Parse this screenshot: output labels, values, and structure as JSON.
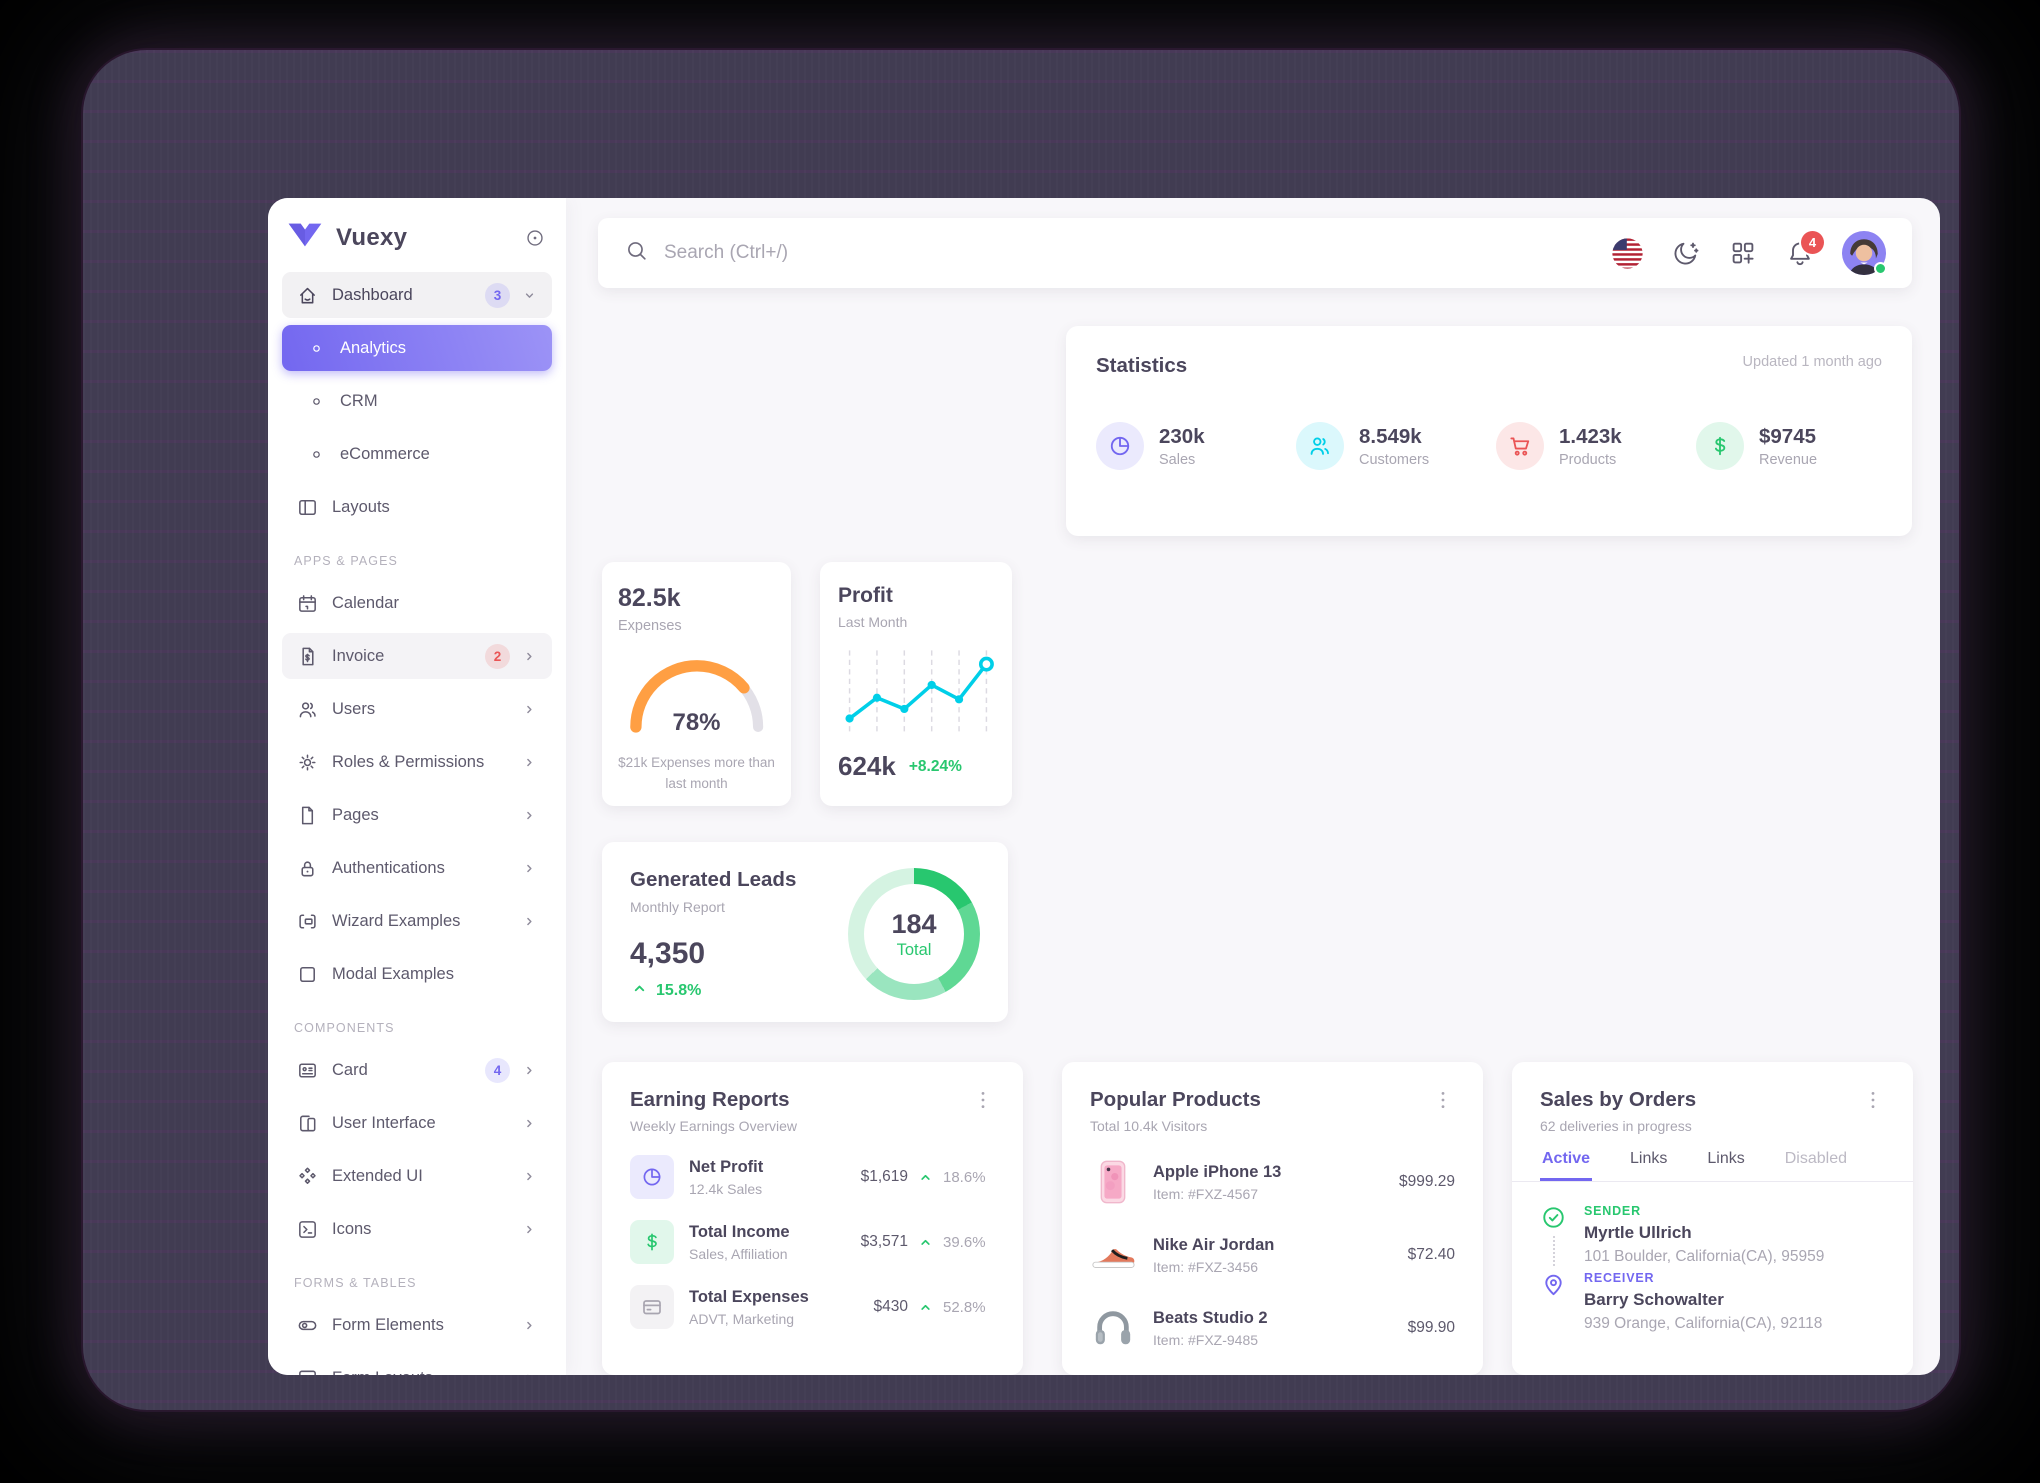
{
  "colors": {
    "primary": "#7367f0",
    "success": "#28c76f",
    "danger": "#ea5455",
    "warning": "#ff9f43",
    "info": "#00cfe8"
  },
  "sidebar": {
    "logo_text": "Vuexy",
    "items": [
      {
        "type": "item",
        "icon": "home",
        "label": "Dashboard",
        "badge": "3",
        "badge_color": "purple",
        "chevron": "down",
        "state": "open"
      },
      {
        "type": "item",
        "icon": "circle",
        "label": "Analytics",
        "state": "active"
      },
      {
        "type": "item",
        "icon": "circle",
        "label": "CRM"
      },
      {
        "type": "item",
        "icon": "circle",
        "label": "eCommerce"
      },
      {
        "type": "item",
        "icon": "layout",
        "label": "Layouts"
      },
      {
        "type": "section",
        "label": "APPS & PAGES"
      },
      {
        "type": "item",
        "icon": "calendar",
        "label": "Calendar"
      },
      {
        "type": "item",
        "icon": "invoice",
        "label": "Invoice",
        "badge": "2",
        "badge_color": "red",
        "chevron": "right",
        "state": "hover"
      },
      {
        "type": "item",
        "icon": "users",
        "label": "Users",
        "chevron": "right"
      },
      {
        "type": "item",
        "icon": "gear",
        "label": "Roles & Permissions",
        "chevron": "right"
      },
      {
        "type": "item",
        "icon": "file",
        "label": "Pages",
        "chevron": "right"
      },
      {
        "type": "item",
        "icon": "lock",
        "label": "Authentications",
        "chevron": "right"
      },
      {
        "type": "item",
        "icon": "wizard",
        "label": "Wizard Examples",
        "chevron": "right"
      },
      {
        "type": "item",
        "icon": "square",
        "label": "Modal Examples"
      },
      {
        "type": "section",
        "label": "COMPONENTS"
      },
      {
        "type": "item",
        "icon": "card",
        "label": "Card",
        "badge": "4",
        "badge_color": "purple",
        "chevron": "right"
      },
      {
        "type": "item",
        "icon": "ui",
        "label": "User Interface",
        "chevron": "right"
      },
      {
        "type": "item",
        "icon": "diamonds",
        "label": "Extended UI",
        "chevron": "right"
      },
      {
        "type": "item",
        "icon": "terminal",
        "label": "Icons",
        "chevron": "right"
      },
      {
        "type": "section",
        "label": "FORMS & TABLES"
      },
      {
        "type": "item",
        "icon": "toggle",
        "label": "Form Elements",
        "chevron": "right"
      },
      {
        "type": "item",
        "icon": "formlayout",
        "label": "Form Layouts",
        "chevron": "right"
      }
    ]
  },
  "topbar": {
    "search_placeholder": "Search (Ctrl+/)",
    "notification_count": "4",
    "icons": [
      {
        "icon": "us-flag",
        "name": "language-flag-icon"
      },
      {
        "icon": "moon",
        "name": "dark-mode-icon"
      },
      {
        "icon": "grid",
        "name": "shortcuts-grid-icon"
      },
      {
        "icon": "bell",
        "name": "notifications-bell-icon",
        "badge": "4"
      },
      {
        "icon": "avatar",
        "name": "user-avatar",
        "status": "online"
      }
    ]
  },
  "cards": {
    "statistics": {
      "title": "Statistics",
      "updated": "Updated 1 month ago",
      "stats": [
        {
          "icon": "pie",
          "color": "#7367f0",
          "value": "230k",
          "label": "Sales"
        },
        {
          "icon": "users2",
          "color": "#00cfe8",
          "value": "8.549k",
          "label": "Customers"
        },
        {
          "icon": "cart",
          "color": "#ea5455",
          "value": "1.423k",
          "label": "Products"
        },
        {
          "icon": "dollar",
          "color": "#28c76f",
          "value": "$9745",
          "label": "Revenue"
        }
      ]
    },
    "expenses": {
      "value": "82.5k",
      "label": "Expenses",
      "percent": 78,
      "percent_label": "78%",
      "caption": "$21k Expenses more than last month",
      "gauge_color": "#ff9f43"
    },
    "profit": {
      "title": "Profit",
      "subtitle": "Last Month",
      "value": "624k",
      "delta": "+8.24%",
      "line_color": "#00cfe8",
      "series": [
        20,
        46,
        32,
        62,
        44,
        88
      ]
    },
    "leads": {
      "title": "Generated Leads",
      "subtitle": "Monthly Report",
      "value": "4,350",
      "delta": "15.8%",
      "donut": {
        "center_value": "184",
        "center_label": "Total",
        "segments": [
          {
            "color": "#28c76f",
            "pct": 17
          },
          {
            "color": "#5fd894",
            "pct": 25
          },
          {
            "color": "#9ae5bf",
            "pct": 21
          },
          {
            "color": "#d5f3e2",
            "pct": 37
          }
        ]
      }
    },
    "earning_reports": {
      "title": "Earning Reports",
      "subtitle": "Weekly Earnings Overview",
      "rows": [
        {
          "icon": "pie",
          "color": "#7367f0",
          "title": "Net Profit",
          "subtitle": "12.4k Sales",
          "amount": "$1,619",
          "delta": "18.6%"
        },
        {
          "icon": "dollar",
          "color": "#28c76f",
          "title": "Total Income",
          "subtitle": "Sales, Affiliation",
          "amount": "$3,571",
          "delta": "39.6%"
        },
        {
          "icon": "creditcard",
          "color": "#a8a5b0",
          "title": "Total Expenses",
          "subtitle": "ADVT, Marketing",
          "amount": "$430",
          "delta": "52.8%"
        }
      ]
    },
    "products": {
      "title": "Popular Products",
      "subtitle": "Total 10.4k Visitors",
      "rows": [
        {
          "image": "iphone",
          "name": "Apple iPhone 13",
          "item": "Item: #FXZ-4567",
          "price": "$999.29"
        },
        {
          "image": "sneaker",
          "name": "Nike Air Jordan",
          "item": "Item: #FXZ-3456",
          "price": "$72.40"
        },
        {
          "image": "headphones",
          "name": "Beats Studio 2",
          "item": "Item: #FXZ-9485",
          "price": "$99.90"
        }
      ]
    },
    "orders": {
      "title": "Sales by Orders",
      "subtitle": "62 deliveries in progress",
      "tabs": [
        {
          "label": "Active",
          "state": "active"
        },
        {
          "label": "Links",
          "state": ""
        },
        {
          "label": "Links",
          "state": ""
        },
        {
          "label": "Disabled",
          "state": "disabled"
        }
      ],
      "timeline": [
        {
          "icon": "checkcircle",
          "color": "#28c76f",
          "role": "SENDER",
          "name": "Myrtle Ullrich",
          "address": "101 Boulder, California(CA), 95959"
        },
        {
          "icon": "pin",
          "color": "#7367f0",
          "role": "RECEIVER",
          "name": "Barry Schowalter",
          "address": "939 Orange, California(CA), 92118"
        }
      ]
    }
  }
}
